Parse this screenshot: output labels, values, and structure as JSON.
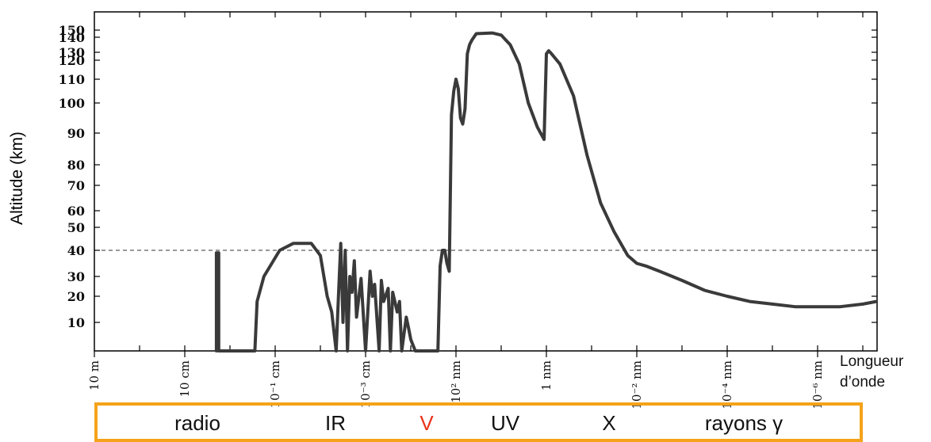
{
  "chart_data": {
    "type": "line",
    "ylabel": "Altitude (km)",
    "xlabel_lines": [
      "Longueur",
      "d’onde"
    ],
    "y_ticks": [
      {
        "label": "10",
        "value": 10
      },
      {
        "label": "20",
        "value": 20
      },
      {
        "label": "30",
        "value": 30
      },
      {
        "label": "40",
        "value": 40
      },
      {
        "label": "50",
        "value": 50
      },
      {
        "label": "60",
        "value": 60
      },
      {
        "label": "70",
        "value": 70
      },
      {
        "label": "80",
        "value": 80
      },
      {
        "label": "90",
        "value": 90
      },
      {
        "label": "100",
        "value": 100
      },
      {
        "label": "110",
        "value": 110
      },
      {
        "label": "120",
        "value": 120
      },
      {
        "label": "130",
        "value": 130
      },
      {
        "label": "140",
        "value": 140
      },
      {
        "label": "150",
        "value": 150
      }
    ],
    "x_ticks": [
      {
        "label": "10 m",
        "pos": 0
      },
      {
        "label": "10 cm",
        "pos": 2
      },
      {
        "label": "10⁻¹ cm",
        "pos": 4
      },
      {
        "label": "10⁻³ cm",
        "pos": 6
      },
      {
        "label": "10² nm",
        "pos": 8
      },
      {
        "label": "1 nm",
        "pos": 10
      },
      {
        "label": "10⁻² nm",
        "pos": 12
      },
      {
        "label": "10⁻⁴ nm",
        "pos": 14
      },
      {
        "label": "10⁻⁶ nm",
        "pos": 16
      }
    ],
    "reference_line": {
      "y": 40,
      "style": "dashed"
    },
    "series": [
      {
        "color": "#3a3a3a",
        "x": [
          2.7,
          2.7,
          2.75,
          2.75,
          3.55,
          3.6,
          3.75,
          4.1,
          4.4,
          4.8,
          5.0,
          5.15,
          5.25,
          5.35,
          5.4,
          5.45,
          5.5,
          5.55,
          5.6,
          5.65,
          5.7,
          5.75,
          5.8,
          5.9,
          6.0,
          6.1,
          6.15,
          6.2,
          6.3,
          6.35,
          6.4,
          6.5,
          6.55,
          6.6,
          6.7,
          6.75,
          6.8,
          6.9,
          6.95,
          7.0,
          7.1,
          7.6,
          7.65,
          7.7,
          7.75,
          7.8,
          7.85,
          7.9,
          7.95,
          8.0,
          8.05,
          8.1,
          8.15,
          8.2,
          8.25,
          8.3,
          8.35,
          8.45,
          8.8,
          9.0,
          9.2,
          9.4,
          9.6,
          9.8,
          9.95,
          10.0,
          10.05,
          10.1,
          10.3,
          10.6,
          10.9,
          11.2,
          11.5,
          11.8,
          12.0,
          12.2,
          12.5,
          13.0,
          13.5,
          14.0,
          14.5,
          15.0,
          15.5,
          16.0,
          16.5,
          17.0,
          17.3
        ],
        "y": [
          0,
          39,
          39,
          0,
          0,
          18,
          30,
          40,
          43,
          43,
          38,
          20,
          14,
          0,
          20,
          43,
          10,
          40,
          0,
          30,
          22,
          36,
          12,
          29,
          0,
          32,
          20,
          26,
          0,
          28,
          18,
          24,
          0,
          22,
          14,
          18,
          0,
          12,
          8,
          4,
          0,
          0,
          34,
          40,
          40,
          35,
          32,
          96,
          105,
          110,
          106,
          95,
          93,
          98,
          128,
          135,
          138,
          145,
          146,
          143,
          135,
          118,
          100,
          92,
          88,
          128,
          131,
          129,
          118,
          103,
          83,
          63,
          48,
          38,
          35,
          34,
          32,
          28,
          23,
          20,
          18,
          17,
          16,
          16,
          16,
          17,
          18
        ]
      }
    ],
    "bands": [
      "radio",
      "IR",
      "V",
      "UV",
      "X",
      "rayons γ"
    ],
    "band_colors": {
      "V": "#e8331b"
    },
    "axis_color": "#000000",
    "box_color": "#f5a31a",
    "grid": false
  }
}
